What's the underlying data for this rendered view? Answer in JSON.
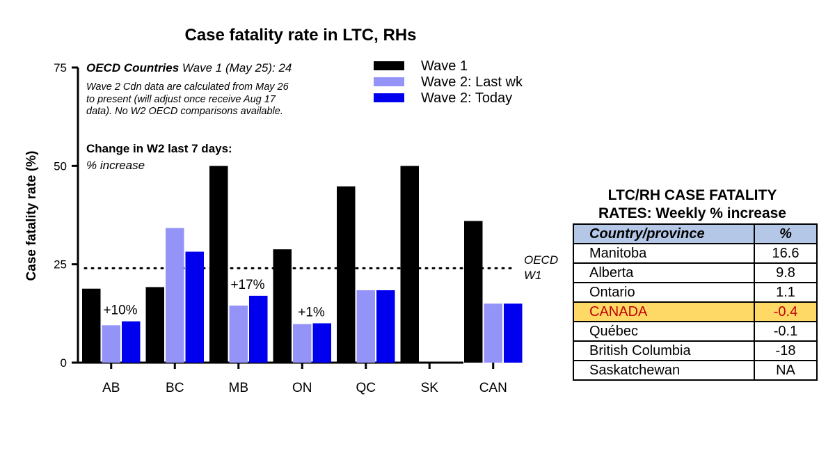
{
  "chart_data": {
    "type": "bar",
    "title": "Case fatality rate in LTC, RHs",
    "ylabel": "Case fatality rate (%)",
    "xlabel": "",
    "ylim": [
      0,
      75
    ],
    "yticks": [
      0,
      25,
      50,
      75
    ],
    "categories": [
      "AB",
      "BC",
      "MB",
      "ON",
      "QC",
      "SK",
      "CAN"
    ],
    "series": [
      {
        "name": "Wave 1",
        "color": "#000000",
        "values": [
          18.8,
          19.2,
          50,
          28.8,
          44.8,
          50,
          36
        ]
      },
      {
        "name": "Wave 2: Last wk",
        "color": "#9494f8",
        "values": [
          9.5,
          34.2,
          14.5,
          9.8,
          18.4,
          0,
          15
        ]
      },
      {
        "name": "Wave 2: Today",
        "color": "#0000ee",
        "values": [
          10.5,
          28.2,
          17,
          10,
          18.4,
          0,
          15
        ]
      }
    ],
    "reference_line": {
      "value": 24,
      "label": "OECD W1",
      "style": "dotted"
    },
    "bar_labels": [
      {
        "category": "AB",
        "text": "+10%"
      },
      {
        "category": "MB",
        "text": "+17%"
      },
      {
        "category": "ON",
        "text": "+1%"
      }
    ],
    "legend_position": "top-right",
    "grid": false
  },
  "annotations": {
    "oecd_bold": "OECD Countries",
    "oecd_rest": " Wave 1 (May 25): 24",
    "note": "Wave 2 Cdn data are calculated from May 26 to present (will adjust once receive Aug 17 data). No W2 OECD comparisons available.",
    "change_title": "Change in W2 last 7 days:",
    "change_sub": "% increase",
    "oecd_line_label_1": "OECD",
    "oecd_line_label_2": "W1"
  },
  "table": {
    "title_line1": "LTC/RH CASE FATALITY",
    "title_line2": "RATES: Weekly % increase",
    "header": [
      "Country/province",
      "%"
    ],
    "rows": [
      {
        "name": "Manitoba",
        "value": "16.6",
        "highlight": false
      },
      {
        "name": "Alberta",
        "value": "9.8",
        "highlight": false
      },
      {
        "name": "Ontario",
        "value": "1.1",
        "highlight": false
      },
      {
        "name": "CANADA",
        "value": "-0.4",
        "highlight": true
      },
      {
        "name": "Québec",
        "value": "-0.1",
        "highlight": false
      },
      {
        "name": "British Columbia",
        "value": "-18",
        "highlight": false
      },
      {
        "name": "Saskatchewan",
        "value": "NA",
        "highlight": false
      }
    ]
  }
}
